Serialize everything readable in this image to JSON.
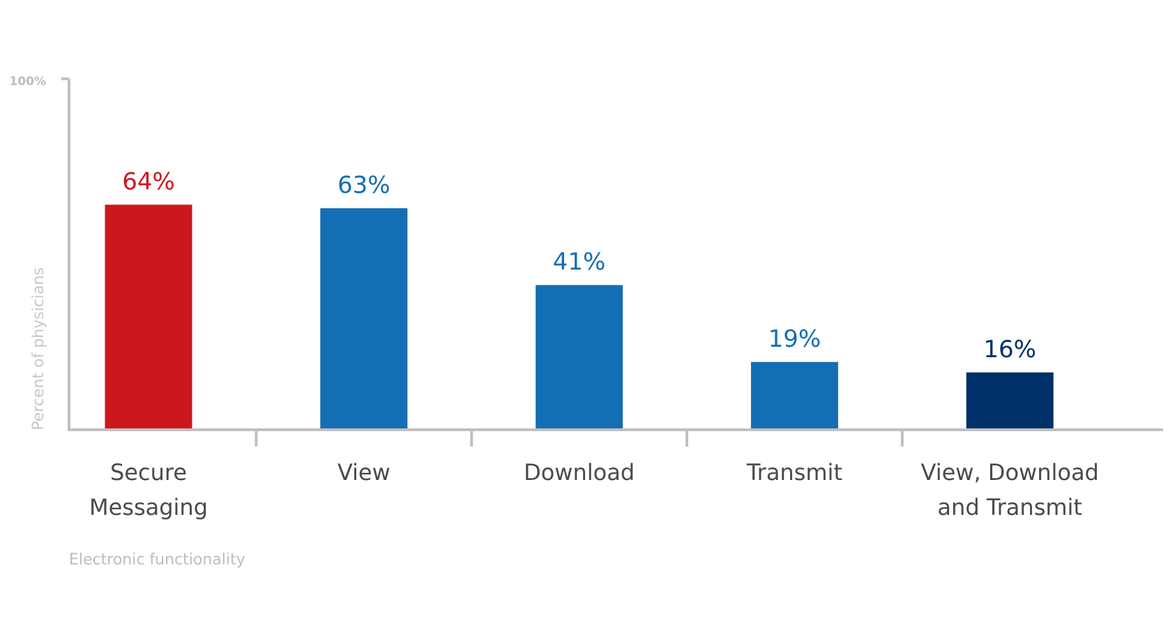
{
  "chart_data": {
    "type": "bar",
    "categories": [
      [
        "Secure",
        "Messaging"
      ],
      [
        "View"
      ],
      [
        "Download"
      ],
      [
        "Transmit"
      ],
      [
        "View, Download",
        "and Transmit"
      ]
    ],
    "values": [
      64,
      63,
      41,
      19,
      16
    ],
    "data_labels": [
      "64%",
      "63%",
      "41%",
      "19%",
      "16%"
    ],
    "bar_colors": [
      "#cc171e",
      "#146eb4",
      "#146eb4",
      "#146eb4",
      "#003069"
    ],
    "label_colors": [
      "#cc171e",
      "#146eb4",
      "#146eb4",
      "#146eb4",
      "#003069"
    ],
    "ylim": [
      0,
      100
    ],
    "ymax_label": "100%",
    "ylabel": "Percent of physicians",
    "xlabel": "Electronic functionality",
    "grid": false,
    "legend": "none"
  }
}
